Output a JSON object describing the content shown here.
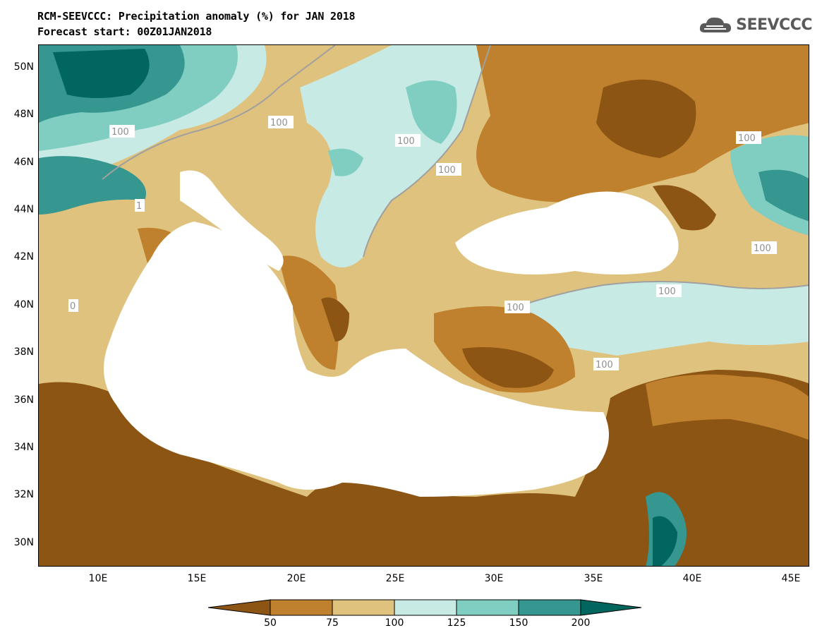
{
  "header": {
    "title": "RCM-SEEVCCC: Precipitation anomaly (%) for JAN 2018",
    "subtitle": "Forecast start: 00Z01JAN2018"
  },
  "logo": {
    "text": "SEEVCCC",
    "icon": "cloud-icon"
  },
  "map": {
    "lon_range": [
      7,
      46
    ],
    "lat_range": [
      29,
      51
    ],
    "lat_labels": [
      "50N",
      "48N",
      "46N",
      "44N",
      "42N",
      "40N",
      "38N",
      "36N",
      "34N",
      "32N",
      "30N"
    ],
    "lon_labels": [
      "10E",
      "15E",
      "20E",
      "25E",
      "30E",
      "35E",
      "40E",
      "45E"
    ],
    "contour_labels": [
      "100",
      "100",
      "100",
      "100",
      "1",
      "0",
      "100",
      "100",
      "100",
      "100",
      "100"
    ]
  },
  "colorbar": {
    "labels": [
      "50",
      "75",
      "100",
      "125",
      "150",
      "200"
    ],
    "colors": {
      "lt50": "#8c5514",
      "50-75": "#bf812d",
      "75-100": "#dfc27d",
      "100-125": "#c7eae5",
      "125-150": "#80cdc1",
      "150-200": "#35978f",
      "gt200": "#01665e"
    }
  }
}
